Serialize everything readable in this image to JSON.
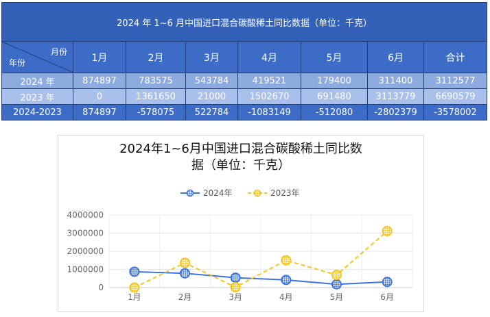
{
  "table": {
    "title": "2024 年 1~6 月中国进口混合碳酸稀土同比数据（单位：千克）",
    "corner_month": "月份",
    "corner_year": "年份",
    "columns": [
      "1月",
      "2月",
      "3月",
      "4月",
      "5月",
      "6月",
      "合计"
    ],
    "rows": [
      {
        "label": "2024 年",
        "values": [
          "874897",
          "783575",
          "543784",
          "419521",
          "179400",
          "311400",
          "3112577"
        ]
      },
      {
        "label": "2023 年",
        "values": [
          "0",
          "1361650",
          "21000",
          "1502670",
          "691480",
          "3113779",
          "6690579"
        ]
      },
      {
        "label": "2024-2023",
        "values": [
          "874897",
          "-578075",
          "522784",
          "-1083149",
          "-512080",
          "-2802379",
          "-3578002"
        ]
      }
    ]
  },
  "chart_data": {
    "type": "line",
    "title_line1": "2024年1~6月中国进口混合碳酸稀土同比数",
    "title_line2": "据（单位：千克）",
    "categories": [
      "1月",
      "2月",
      "3月",
      "4月",
      "5月",
      "6月"
    ],
    "series": [
      {
        "name": "2024年",
        "values": [
          874897,
          783575,
          543784,
          419521,
          179400,
          311400
        ],
        "color": "#3b73e0",
        "dash": false
      },
      {
        "name": "2023年",
        "values": [
          0,
          1361650,
          21000,
          1502670,
          691480,
          3113779
        ],
        "color": "#f5c518",
        "dash": true
      }
    ],
    "yticks": [
      0,
      1000000,
      2000000,
      3000000,
      4000000
    ],
    "ylim": [
      0,
      4000000
    ],
    "grid": true,
    "legend": "top"
  }
}
